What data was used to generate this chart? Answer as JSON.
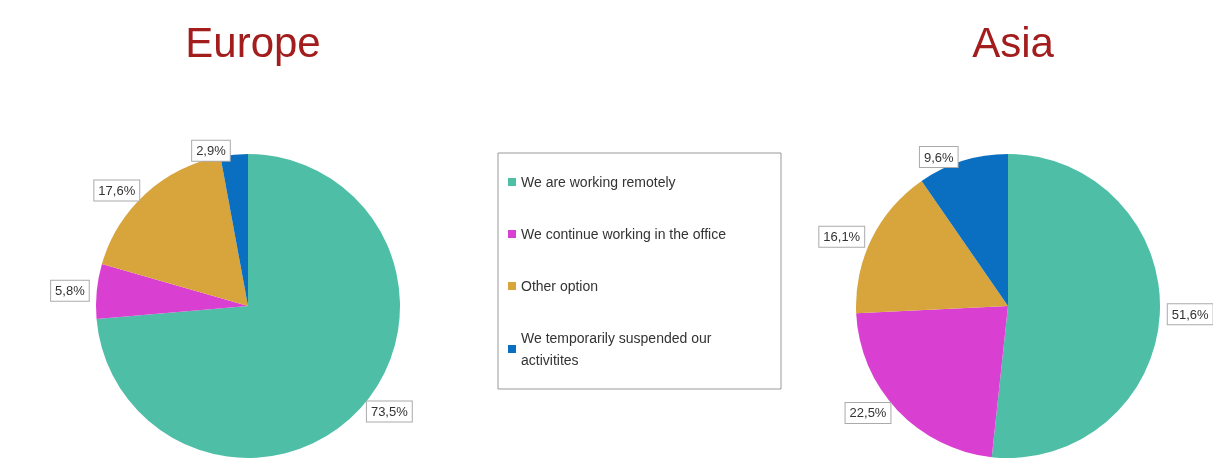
{
  "chart_data": [
    {
      "type": "pie",
      "title": "Europe",
      "categories": [
        "We are working remotely",
        "We continue working in the office",
        "Other option",
        "We temporarily suspended our activitites"
      ],
      "values": [
        73.5,
        5.8,
        17.6,
        2.9
      ],
      "value_labels": [
        "73,5%",
        "5,8%",
        "17,6%",
        "2,9%"
      ],
      "colors": [
        "#4fbea6",
        "#d93fd0",
        "#d8a43c",
        "#0b6fc1"
      ],
      "legend": "right"
    },
    {
      "type": "pie",
      "title": "Asia",
      "categories": [
        null,
        null,
        null,
        null
      ],
      "values": [
        51.6,
        22.5,
        16.1,
        9.6
      ],
      "value_labels": [
        "51,6%",
        "22,5%",
        "16,1%",
        "9,6%"
      ],
      "colors": [
        "#4fbea6",
        "#d93fd0",
        "#d8a43c",
        "#0b6fc1"
      ]
    }
  ]
}
